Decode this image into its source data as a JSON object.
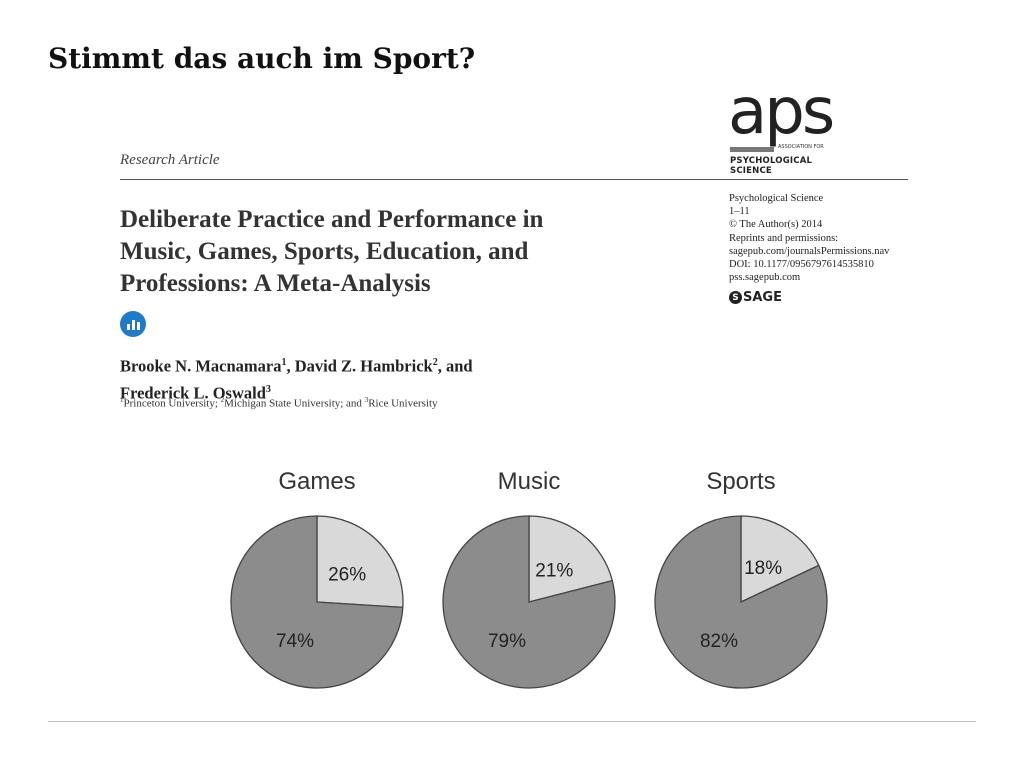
{
  "slide": {
    "title": "Stimmt das auch im Sport?"
  },
  "article": {
    "kind": "Research Article",
    "title_lines": [
      "Deliberate Practice and Performance in",
      "Music, Games, Sports, Education, and",
      "Professions: A Meta-Analysis"
    ],
    "authors_line1": [
      "Brooke N. Macnamara",
      "1",
      ", David Z. Hambrick",
      "2",
      ", and"
    ],
    "authors_line2": [
      "Frederick L. Oswald",
      "3"
    ],
    "affiliations": [
      "1",
      "Princeton University; ",
      "2",
      "Michigan State University; and ",
      "3",
      "Rice University"
    ]
  },
  "publisher": {
    "aps_letters": "aps",
    "aps_small": "Association for",
    "aps_name": "PSYCHOLOGICAL SCIENCE",
    "meta_lines": [
      "Psychological Science",
      "1–11",
      "© The Author(s) 2014",
      "Reprints and permissions:",
      "sagepub.com/journalsPermissions.nav",
      "DOI: 10.1177/0956797614535810",
      "pss.sagepub.com"
    ],
    "sage_label": "SAGE"
  },
  "chart_data": [
    {
      "type": "pie",
      "title": "Games",
      "labels": [
        "26%",
        "74%"
      ],
      "values": [
        26,
        74
      ],
      "colors": [
        "#d9d9d9",
        "#8c8c8c"
      ]
    },
    {
      "type": "pie",
      "title": "Music",
      "labels": [
        "21%",
        "79%"
      ],
      "values": [
        21,
        79
      ],
      "colors": [
        "#d9d9d9",
        "#8c8c8c"
      ]
    },
    {
      "type": "pie",
      "title": "Sports",
      "labels": [
        "18%",
        "82%"
      ],
      "values": [
        18,
        82
      ],
      "colors": [
        "#d9d9d9",
        "#8c8c8c"
      ]
    }
  ]
}
